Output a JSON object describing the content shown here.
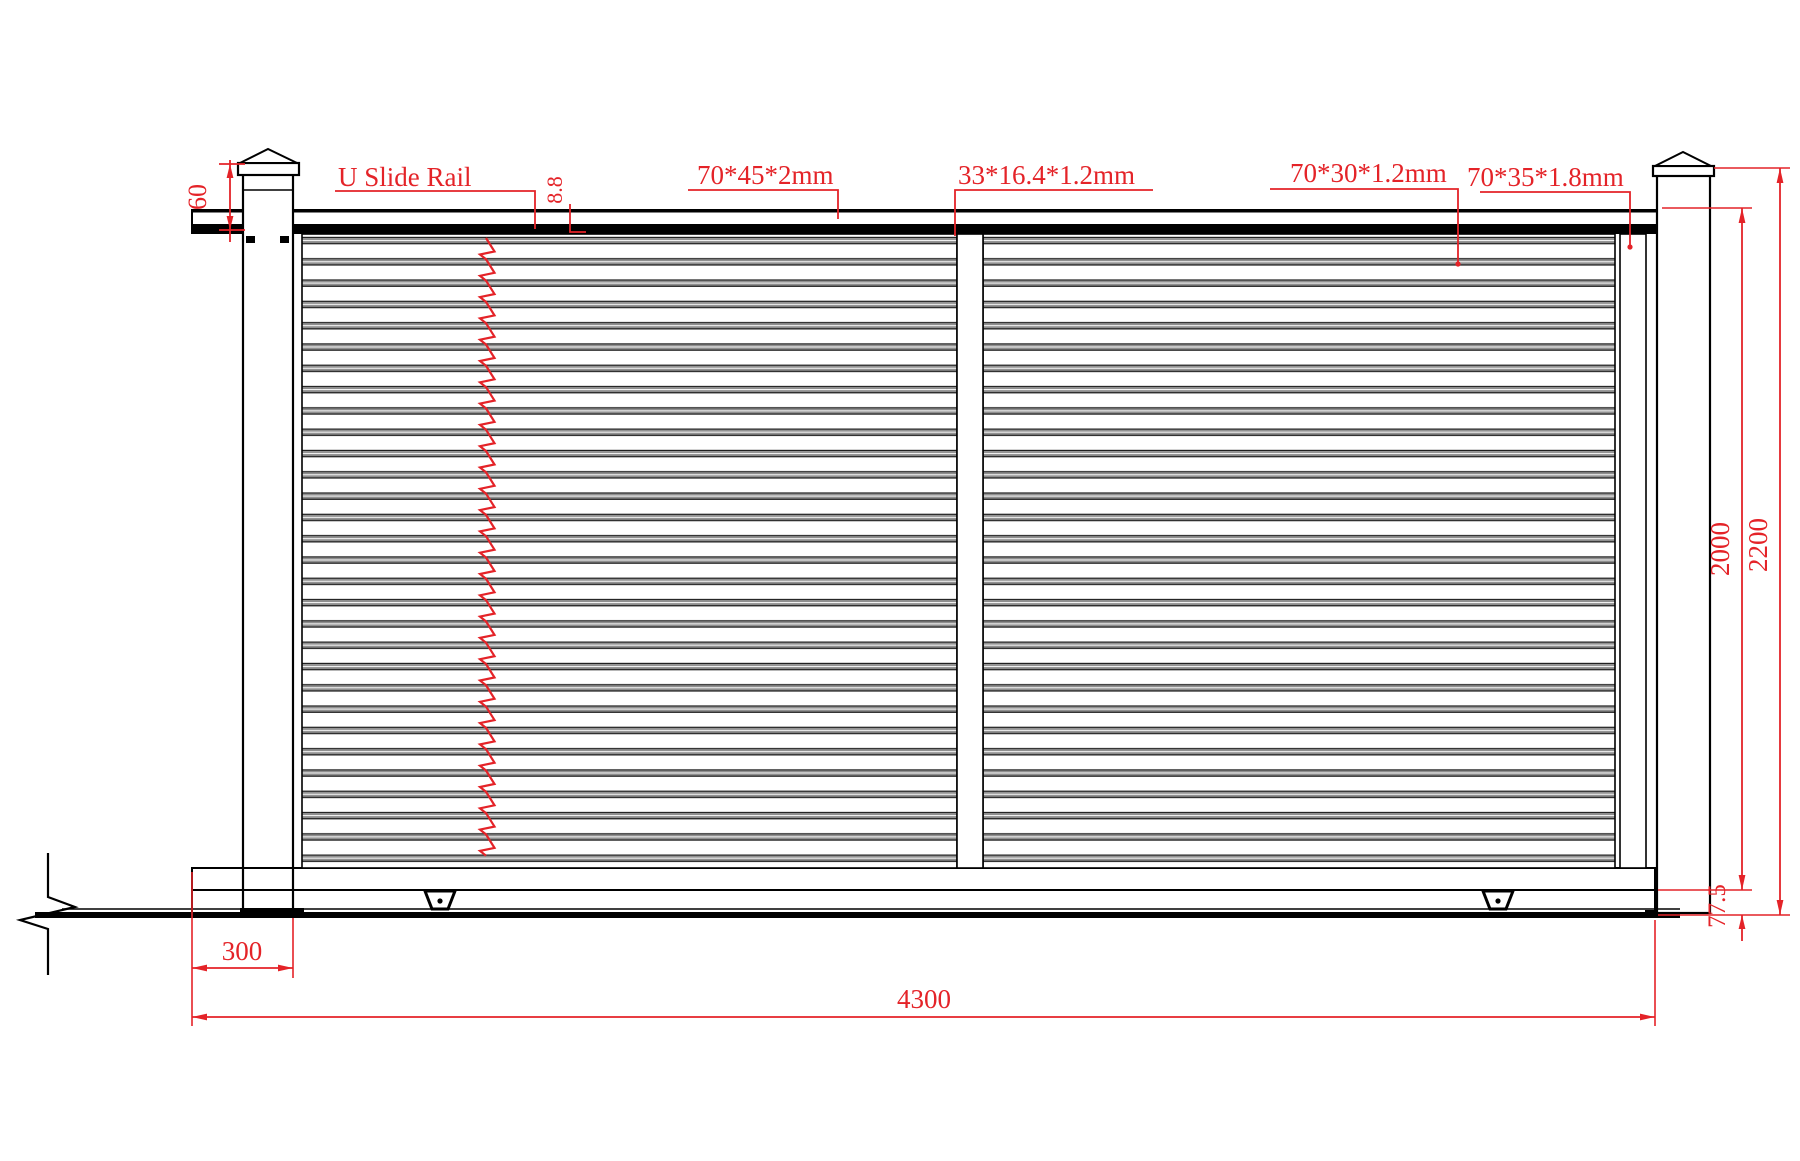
{
  "drawing": {
    "type": "sliding-gate-technical-drawing",
    "callouts": {
      "slide_rail": "U Slide Rail",
      "top_rail_profile": "70*45*2mm",
      "infill_slat_profile": "33*16.4*1.2mm",
      "upright_profile": "70*30*1.2mm",
      "end_stile_profile": "70*35*1.8mm"
    },
    "dimensions": {
      "rail_height": "60",
      "rail_gap": "8.8",
      "gate_height": "2000",
      "overall_height": "2200",
      "bottom_rail_height": "77.5",
      "post_inset": "300",
      "overall_width": "4300"
    },
    "colors": {
      "annotation_red": "#e42328",
      "line_black": "#000000",
      "slat_gray": "#8f8f8f"
    }
  }
}
